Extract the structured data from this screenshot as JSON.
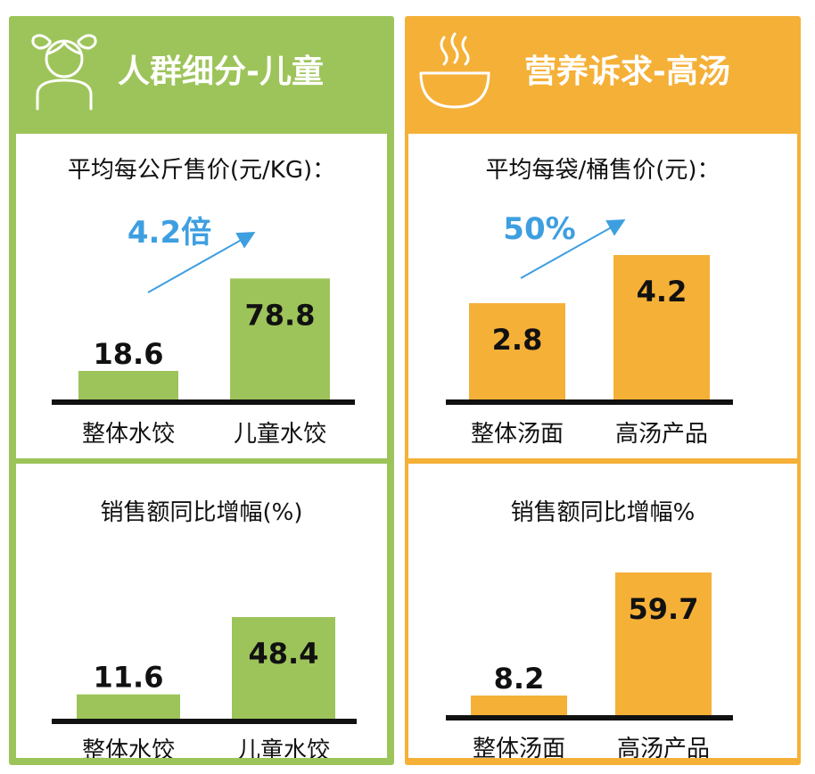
{
  "colors": {
    "green": "#9dc45a",
    "orange": "#f5b038",
    "accent_blue": "#3e9fe0",
    "baseline": "#111111"
  },
  "icons": {
    "left_header": "girl-icon",
    "right_header": "soup-bowl-icon"
  },
  "left": {
    "header": "人群细分-儿童",
    "top": {
      "title": "平均每公斤售价(元/KG)：",
      "annotation": "4.2倍"
    },
    "bottom": {
      "title": "销售额同比增幅(%)"
    }
  },
  "right": {
    "header": "营养诉求-高汤",
    "top": {
      "title": "平均每袋/桶售价(元)：",
      "annotation": "50%"
    },
    "bottom": {
      "title": "销售额同比增幅%"
    }
  },
  "chart_data": [
    {
      "type": "bar",
      "categories": [
        "整体水饺",
        "儿童水饺"
      ],
      "values": [
        18.6,
        78.8
      ],
      "ylim": [
        0,
        90
      ]
    },
    {
      "type": "bar",
      "categories": [
        "整体水饺",
        "儿童水饺"
      ],
      "values": [
        11.6,
        48.4
      ],
      "ylim": [
        0,
        48.4
      ]
    },
    {
      "type": "bar",
      "categories": [
        "整体汤面",
        "高汤产品"
      ],
      "values": [
        2.8,
        4.2
      ],
      "ylim": [
        0,
        4.2
      ]
    },
    {
      "type": "bar",
      "categories": [
        "整体汤面",
        "高汤产品"
      ],
      "values": [
        8.2,
        59.7
      ],
      "ylim": [
        0,
        59.7
      ]
    }
  ]
}
